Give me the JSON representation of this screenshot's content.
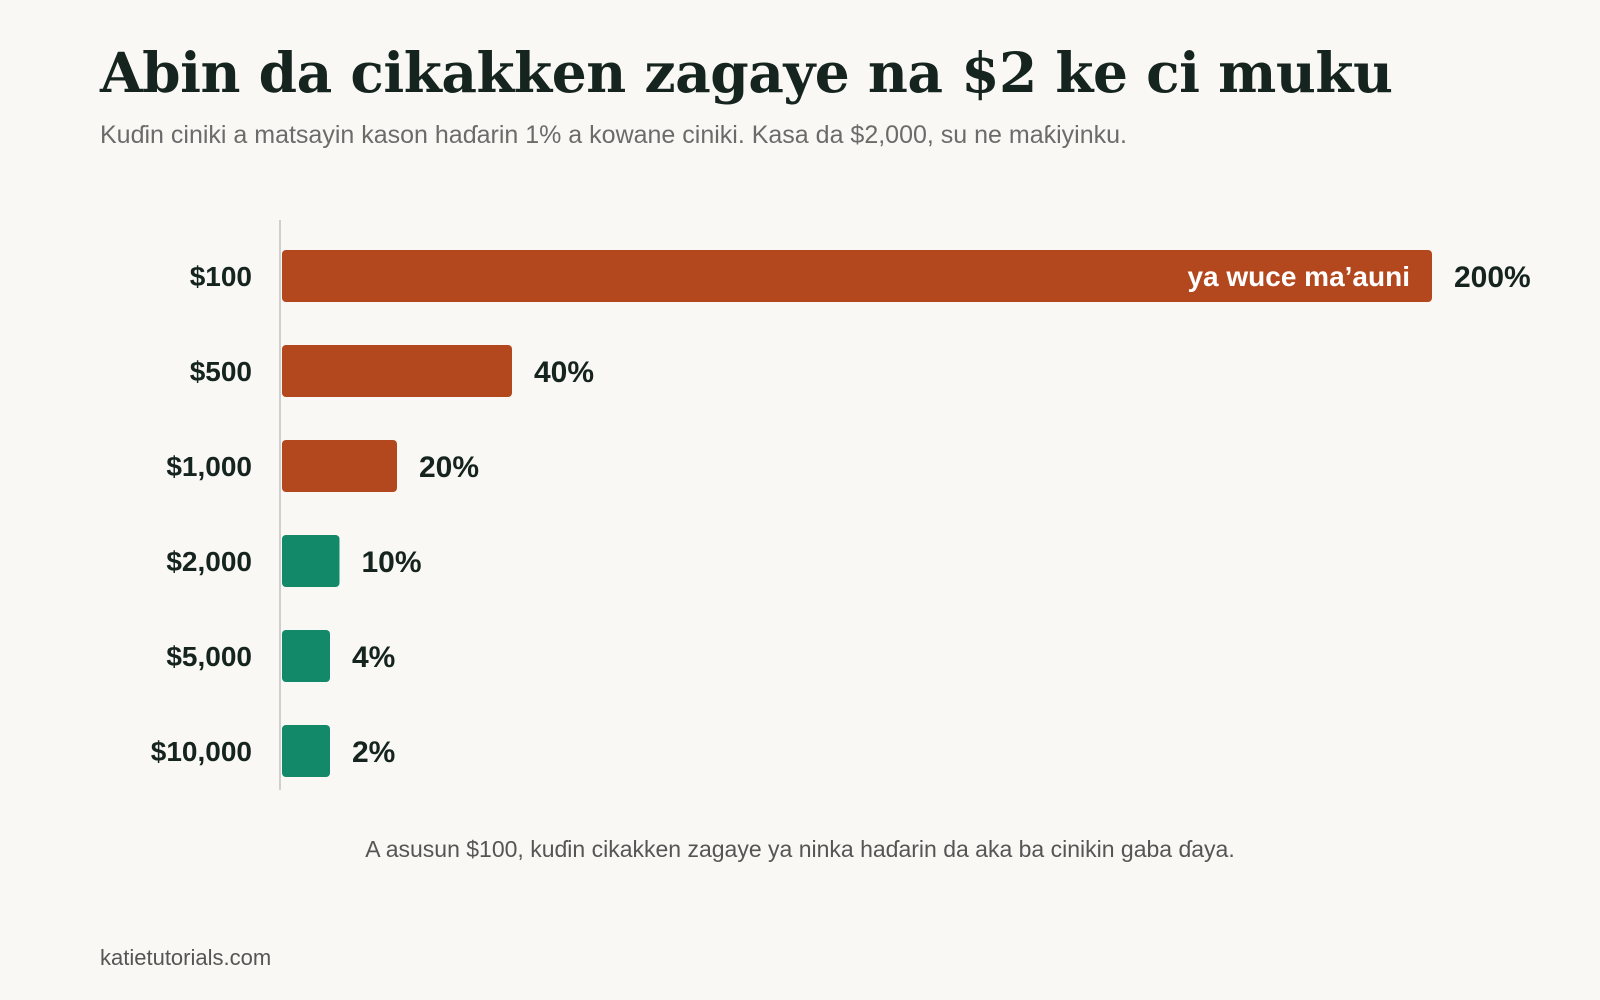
{
  "header": {
    "title": "Abin da cikakken zagaye na $2 ke ci muku",
    "subtitle": "Kuɗin ciniki a matsayin kason haɗarin 1% a kowane ciniki. Kasa da $2,000, su ne maƙiyinku."
  },
  "chart_data": {
    "type": "bar",
    "orientation": "horizontal",
    "categories": [
      "$100",
      "$500",
      "$1,000",
      "$2,000",
      "$5,000",
      "$10,000"
    ],
    "values": [
      200,
      40,
      20,
      10,
      4,
      2
    ],
    "value_labels": [
      "200%",
      "40%",
      "20%",
      "10%",
      "4%",
      "2%"
    ],
    "unit": "%",
    "xlim": [
      0,
      240
    ],
    "bar_colors": [
      "#b3471d",
      "#b3471d",
      "#b3471d",
      "#128a69",
      "#128a69",
      "#128a69"
    ],
    "annotations": [
      {
        "category": "$100",
        "text": "ya wuce ma’auni",
        "position": "inside-end"
      }
    ],
    "grid": false,
    "legend": "none"
  },
  "note": "A asusun $100, kuɗin cikakken zagaye ya ninka haɗarin da aka ba cinikin gaba ɗaya.",
  "source": "katietutorials.com",
  "colors": {
    "background": "#f9f8f4",
    "danger": "#b3471d",
    "ok": "#128a69",
    "text": "#16241f"
  }
}
